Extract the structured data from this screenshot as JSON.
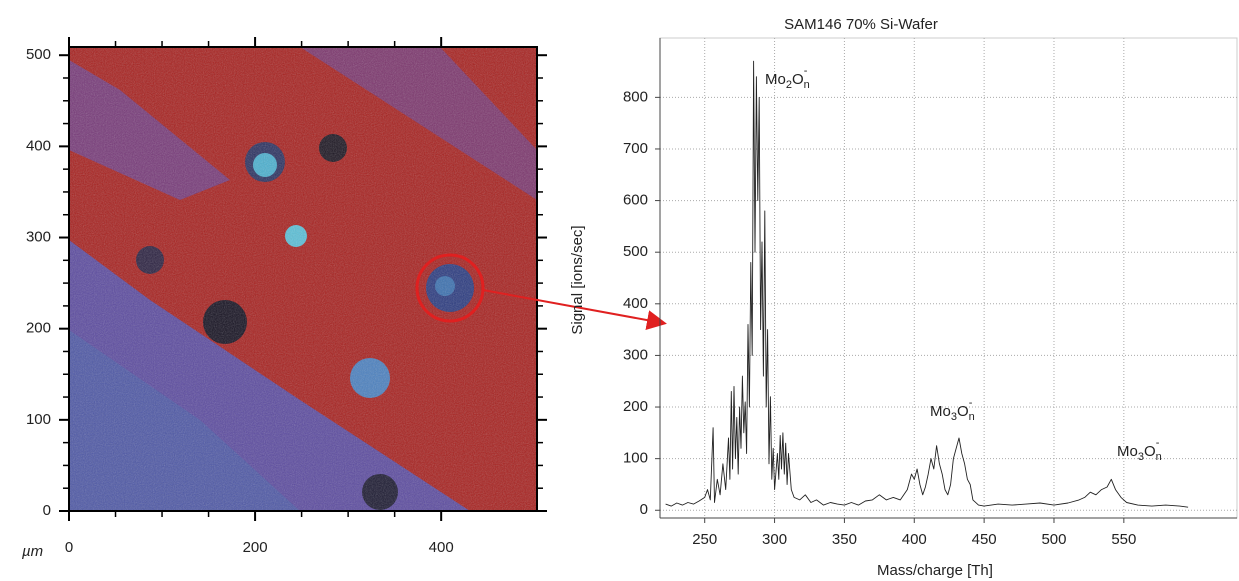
{
  "chart_data": [
    {
      "type": "image",
      "x_unit": "µm",
      "xlim": [
        0,
        503
      ],
      "xticks": [
        0,
        200,
        400
      ],
      "ylim": [
        0,
        509
      ],
      "yticks": [
        0,
        100,
        200,
        300,
        400,
        500
      ]
    },
    {
      "type": "line",
      "title": "SAM146 70% Si-Wafer",
      "xlabel": "Mass/charge [Th]",
      "ylabel": "Signal [ions/sec]",
      "xlim": [
        218,
        631
      ],
      "xticks": [
        250,
        300,
        350,
        400,
        450,
        500,
        550
      ],
      "ylim": [
        -15,
        915
      ],
      "yticks": [
        0,
        100,
        200,
        300,
        400,
        500,
        600,
        700,
        800
      ],
      "grid": true,
      "annotations": [
        [
          "Mo",
          "2",
          "O",
          "n",
          "-"
        ],
        [
          "Mo",
          "3",
          "O",
          "n",
          "-"
        ],
        [
          "Mo",
          "3",
          "O",
          "n",
          "-"
        ]
      ],
      "series": [
        {
          "color": "#222222",
          "x": [
            222,
            226,
            230,
            234,
            238,
            242,
            246,
            250,
            252,
            254,
            256,
            257,
            259,
            261,
            263,
            265,
            267,
            268,
            269,
            270,
            271,
            272,
            273,
            274,
            275,
            276,
            277,
            278,
            279,
            280,
            281,
            282,
            283,
            284,
            285,
            286,
            287,
            288,
            289,
            290,
            291,
            292,
            293,
            294,
            295,
            296,
            297,
            298,
            299,
            300,
            302,
            303,
            304,
            305,
            306,
            307,
            308,
            309,
            310,
            312,
            314,
            318,
            322,
            326,
            330,
            335,
            340,
            345,
            350,
            355,
            360,
            365,
            370,
            375,
            380,
            385,
            390,
            395,
            398,
            400,
            402,
            404,
            406,
            408,
            410,
            412,
            414,
            416,
            418,
            420,
            422,
            424,
            426,
            428,
            430,
            432,
            434,
            436,
            438,
            440,
            442,
            446,
            450,
            460,
            470,
            480,
            490,
            500,
            510,
            518,
            522,
            526,
            530,
            534,
            538,
            541,
            544,
            548,
            552,
            560,
            570,
            580,
            590,
            596
          ],
          "values": [
            12,
            8,
            14,
            10,
            15,
            12,
            18,
            25,
            40,
            20,
            160,
            15,
            60,
            30,
            90,
            40,
            140,
            60,
            230,
            80,
            240,
            100,
            180,
            70,
            200,
            120,
            260,
            150,
            210,
            110,
            360,
            200,
            480,
            300,
            870,
            500,
            840,
            600,
            800,
            350,
            520,
            260,
            580,
            200,
            350,
            90,
            220,
            60,
            120,
            40,
            110,
            60,
            145,
            80,
            150,
            70,
            130,
            50,
            110,
            40,
            25,
            20,
            30,
            15,
            20,
            10,
            15,
            12,
            10,
            15,
            10,
            18,
            20,
            30,
            20,
            25,
            20,
            40,
            70,
            60,
            80,
            50,
            30,
            45,
            70,
            100,
            80,
            125,
            90,
            70,
            40,
            30,
            50,
            100,
            120,
            140,
            110,
            90,
            60,
            50,
            20,
            10,
            8,
            12,
            10,
            12,
            14,
            10,
            14,
            20,
            25,
            35,
            30,
            40,
            45,
            60,
            40,
            25,
            15,
            10,
            8,
            10,
            8,
            6
          ]
        }
      ]
    }
  ]
}
